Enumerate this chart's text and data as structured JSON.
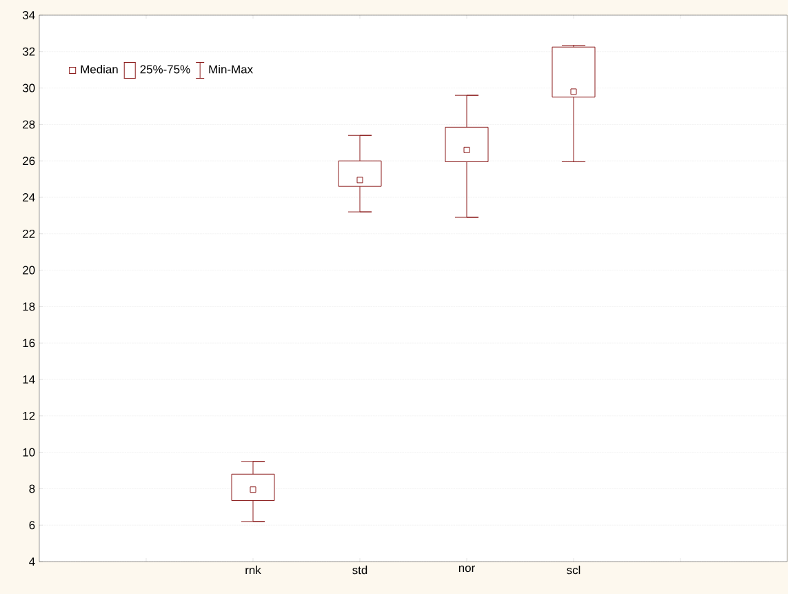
{
  "chart_data": {
    "type": "box",
    "categories": [
      null,
      "rnk",
      "std",
      "nor",
      "scl",
      null
    ],
    "boxes": [
      null,
      {
        "low": 6.2,
        "q1": 7.35,
        "median": 7.95,
        "q3": 8.8,
        "high": 9.5
      },
      {
        "low": 23.2,
        "q1": 24.6,
        "median": 24.95,
        "q3": 26.0,
        "high": 27.4
      },
      {
        "low": 22.9,
        "q1": 25.95,
        "median": 26.6,
        "q3": 27.85,
        "high": 29.6
      },
      {
        "low": 25.95,
        "q1": 29.5,
        "median": 29.8,
        "q3": 32.25,
        "high": 32.35
      },
      null
    ],
    "color": "#8b1a1a",
    "ylim": [
      4,
      34
    ],
    "yticks": [
      4,
      6,
      8,
      10,
      12,
      14,
      16,
      18,
      20,
      22,
      24,
      26,
      28,
      30,
      32,
      34
    ],
    "grid": "y",
    "marker": "square",
    "annotations": [
      "Median",
      "25%-75%",
      "Min-Max"
    ]
  }
}
